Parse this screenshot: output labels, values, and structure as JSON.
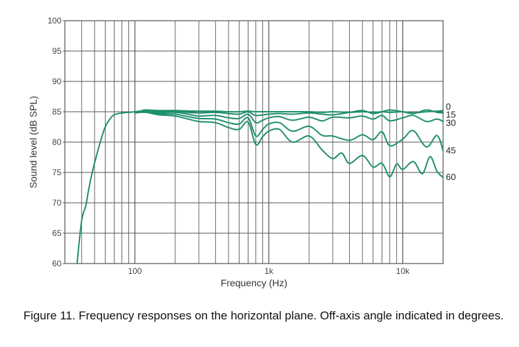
{
  "colors": {
    "curve": "#1f8f6e",
    "grid": "#555555",
    "frame": "#555555"
  },
  "caption": "Figure 11. Frequency responses on the horizontal plane. Off-axis angle indicated in degrees.",
  "chart_data": {
    "type": "line",
    "title": "",
    "xlabel": "Frequency (Hz)",
    "ylabel": "Sound level (dB SPL)",
    "xscale": "log",
    "xlim": [
      30,
      20000
    ],
    "ylim": [
      60,
      100
    ],
    "grid": true,
    "y_ticks": [
      60,
      65,
      70,
      75,
      80,
      85,
      90,
      95,
      100
    ],
    "y_tick_labels": [
      "60",
      "65",
      "70",
      "75",
      "80",
      "85",
      "90",
      "95",
      "100"
    ],
    "x_ticks": [
      100,
      1000,
      10000
    ],
    "x_tick_labels": [
      "100",
      "1k",
      "10k"
    ],
    "series": [
      {
        "name": "0",
        "label": "0",
        "label_value": 85.8,
        "x": [
          37,
          40,
          43,
          45,
          48,
          52,
          56,
          60,
          65,
          70,
          80,
          90,
          100,
          110,
          120,
          150,
          200,
          300,
          400,
          500,
          600,
          700,
          800,
          1000,
          1200,
          1500,
          2000,
          2500,
          3000,
          4000,
          5000,
          6000,
          7000,
          8000,
          10000,
          12000,
          15000,
          18000,
          20000
        ],
        "y": [
          60,
          67,
          69.5,
          72,
          75,
          78,
          80.5,
          82.5,
          83.8,
          84.5,
          84.8,
          84.9,
          85,
          85.1,
          85.3,
          85.2,
          85.2,
          85.1,
          85.1,
          85,
          85,
          85.1,
          85,
          85,
          85,
          85,
          85,
          84.9,
          85,
          84.9,
          85,
          84.9,
          85,
          84.9,
          85,
          84.8,
          85,
          85.1,
          85.2
        ]
      },
      {
        "name": "15",
        "label": "15",
        "label_value": 84.5,
        "x": [
          100,
          120,
          150,
          200,
          250,
          300,
          400,
          500,
          600,
          700,
          800,
          1000,
          1200,
          1500,
          2000,
          2500,
          3000,
          4000,
          5000,
          6000,
          7000,
          8000,
          10000,
          12000,
          15000,
          18000,
          20000
        ],
        "y": [
          85,
          85.2,
          85.1,
          85.1,
          84.9,
          84.8,
          84.9,
          84.7,
          84.6,
          85,
          84.4,
          84.6,
          84.7,
          84.6,
          84.8,
          84.6,
          84.5,
          84.9,
          85.2,
          84.7,
          85,
          85.3,
          85,
          84.7,
          85.3,
          84.9,
          84.8
        ]
      },
      {
        "name": "30",
        "label": "30",
        "label_value": 83.1,
        "x": [
          100,
          120,
          150,
          200,
          250,
          300,
          400,
          500,
          600,
          700,
          800,
          900,
          1000,
          1200,
          1500,
          2000,
          2500,
          3000,
          4000,
          5000,
          6000,
          7000,
          8000,
          10000,
          12000,
          15000,
          18000,
          20000
        ],
        "y": [
          85,
          85.1,
          84.9,
          84.9,
          84.6,
          84.3,
          84.4,
          84,
          83.9,
          84.6,
          83.2,
          83.6,
          84,
          84.2,
          83.6,
          84.1,
          83.5,
          84.1,
          84,
          84.3,
          83.8,
          84.4,
          83.5,
          84,
          84.4,
          83.4,
          83.8,
          83.4
        ]
      },
      {
        "name": "45",
        "label": "45",
        "label_value": 78.6,
        "x": [
          100,
          120,
          150,
          200,
          250,
          300,
          400,
          500,
          600,
          700,
          800,
          900,
          1000,
          1200,
          1500,
          2000,
          2500,
          3000,
          4000,
          5000,
          6000,
          7000,
          8000,
          10000,
          12000,
          15000,
          18000,
          20000
        ],
        "y": [
          85,
          85,
          84.7,
          84.6,
          84.2,
          83.9,
          83.8,
          83.2,
          83,
          84,
          81,
          82.1,
          83,
          83.2,
          81.8,
          82.6,
          81.1,
          81,
          80.3,
          81.2,
          80.4,
          81.7,
          79.4,
          80.5,
          81.9,
          79.2,
          81.1,
          78.6
        ]
      },
      {
        "name": "60",
        "label": "60",
        "label_value": 74.2,
        "x": [
          100,
          120,
          150,
          200,
          250,
          300,
          400,
          500,
          600,
          700,
          800,
          900,
          1000,
          1200,
          1500,
          2000,
          2500,
          3000,
          3500,
          4000,
          5000,
          6000,
          7000,
          8000,
          9000,
          10000,
          12000,
          14000,
          16000,
          18000,
          20000
        ],
        "y": [
          84.8,
          84.9,
          84.5,
          84.3,
          83.8,
          83.4,
          83.2,
          82.4,
          82.1,
          83.3,
          79.6,
          80.9,
          81.8,
          82.1,
          80,
          81,
          78.7,
          77.3,
          78.2,
          76.5,
          77.8,
          75.9,
          76.5,
          74.3,
          76.4,
          75.5,
          76.8,
          74.8,
          77.6,
          75.2,
          74.2
        ]
      }
    ]
  }
}
